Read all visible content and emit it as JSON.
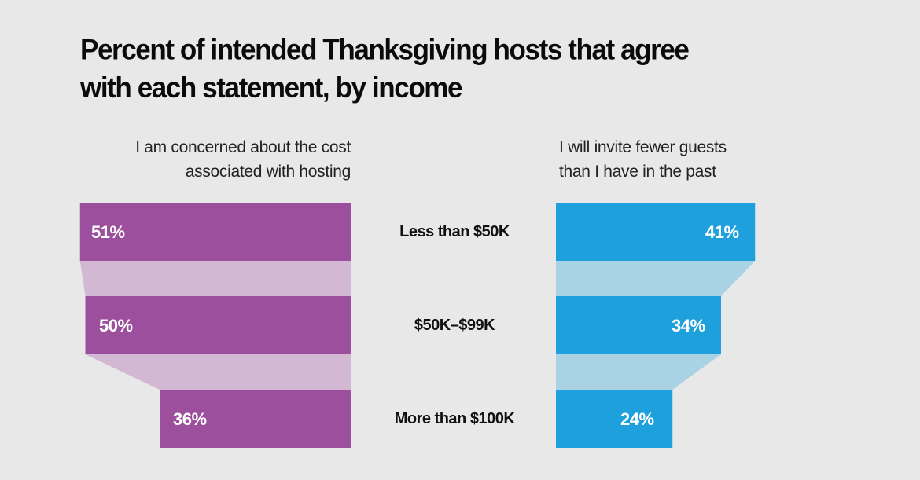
{
  "title": "Percent of intended Thanksgiving hosts that agree with each statement, by income",
  "title_lines": [
    "Percent of intended Thanksgiving hosts that agree",
    "with each statement, by income"
  ],
  "left_panel": {
    "subtitle_lines": [
      "I am concerned about the cost",
      "associated with hosting"
    ],
    "color": "#9b4f9c",
    "connector_color": "#d2b8d2"
  },
  "right_panel": {
    "subtitle_lines": [
      "I will invite fewer guests",
      "than I have in the past"
    ],
    "color": "#1ea0dc",
    "connector_color": "#a9d2e5"
  },
  "categories": [
    "Less than $50K",
    "$50K–$99K",
    "More than $100K"
  ],
  "chart_data": {
    "type": "bar",
    "title": "Percent of intended Thanksgiving hosts that agree with each statement, by income",
    "categories": [
      "Less than $50K",
      "$50K–$99K",
      "More than $100K"
    ],
    "series": [
      {
        "name": "I am concerned about the cost associated with hosting",
        "values": [
          51,
          50,
          36
        ],
        "labels": [
          "51%",
          "50%",
          "36%"
        ],
        "color": "#9b4f9c",
        "direction": "left"
      },
      {
        "name": "I will invite fewer guests than I have in the past",
        "values": [
          41,
          34,
          24
        ],
        "labels": [
          "41%",
          "34%",
          "24%"
        ],
        "color": "#1ea0dc",
        "direction": "right"
      }
    ],
    "xlabel": "",
    "ylabel": "",
    "unit": "%",
    "orientation": "horizontal butterfly / funnel",
    "grid": false,
    "legend": "none (panel subtitles serve as series labels)"
  }
}
